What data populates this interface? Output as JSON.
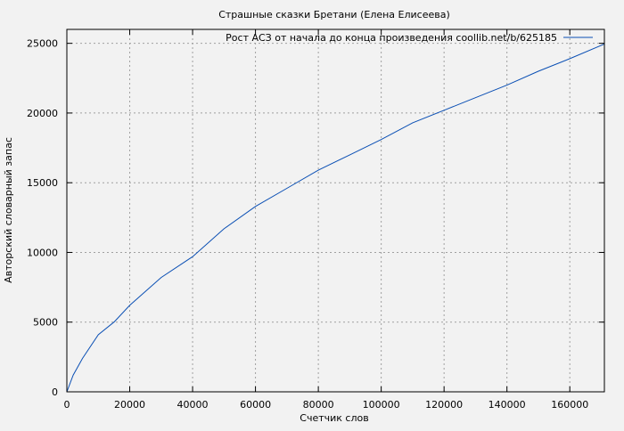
{
  "chart_data": {
    "type": "line",
    "title": "Страшные сказки Бретани (Елена Елисеева)",
    "xlabel": "Счетчик слов",
    "ylabel": "Авторский словарный запас",
    "xlim": [
      0,
      171000
    ],
    "ylim": [
      0,
      26000
    ],
    "xticks": [
      0,
      20000,
      40000,
      60000,
      80000,
      100000,
      120000,
      140000,
      160000
    ],
    "yticks": [
      0,
      5000,
      10000,
      15000,
      20000,
      25000
    ],
    "grid": true,
    "legend_position": "top-right",
    "series": [
      {
        "name": "Рост АСЗ от начала до конца произведения coollib.net/b/625185",
        "color": "#0a4fb4",
        "x": [
          0,
          2000,
          5000,
          10000,
          15000,
          20000,
          30000,
          40000,
          50000,
          60000,
          70000,
          80000,
          90000,
          100000,
          110000,
          120000,
          130000,
          140000,
          150000,
          160000,
          171000
        ],
        "y": [
          0,
          1200,
          2400,
          4100,
          5000,
          6200,
          8200,
          9700,
          11700,
          13300,
          14600,
          15900,
          17000,
          18100,
          19300,
          20200,
          21100,
          22000,
          23000,
          23900,
          24950
        ]
      }
    ]
  }
}
